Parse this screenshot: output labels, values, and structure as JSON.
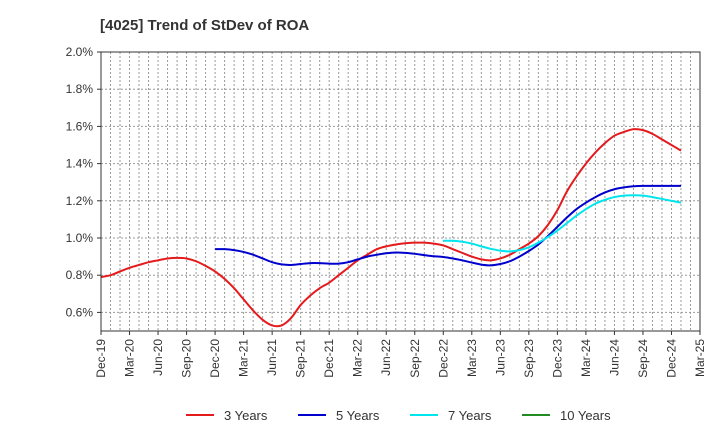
{
  "chart_data": {
    "type": "line",
    "title": "[4025]  Trend of StDev of ROA",
    "xlabel": "",
    "ylabel": "",
    "x_ticks": [
      "Dec-19",
      "Mar-20",
      "Jun-20",
      "Sep-20",
      "Dec-20",
      "Mar-21",
      "Jun-21",
      "Sep-21",
      "Dec-21",
      "Mar-22",
      "Jun-22",
      "Sep-22",
      "Dec-22",
      "Mar-23",
      "Jun-23",
      "Sep-23",
      "Dec-23",
      "Mar-24",
      "Jun-24",
      "Sep-24",
      "Dec-24",
      "Mar-25"
    ],
    "y_ticks": [
      "0.6%",
      "0.8%",
      "1.0%",
      "1.2%",
      "1.4%",
      "1.6%",
      "1.8%",
      "2.0%"
    ],
    "ylim": [
      0.5,
      2.0
    ],
    "y_unit": "%",
    "grid": true,
    "legend_position": "bottom",
    "series": [
      {
        "name": "3 Years",
        "color": "#e41a1c",
        "points": [
          [
            "Dec-19",
            0.79
          ],
          [
            "Jan-20",
            0.8
          ],
          [
            "Feb-20",
            0.82
          ],
          [
            "Mar-20",
            0.84
          ],
          [
            "Apr-20",
            0.855
          ],
          [
            "May-20",
            0.87
          ],
          [
            "Jun-20",
            0.88
          ],
          [
            "Jul-20",
            0.89
          ],
          [
            "Aug-20",
            0.893
          ],
          [
            "Sep-20",
            0.89
          ],
          [
            "Oct-20",
            0.875
          ],
          [
            "Nov-20",
            0.85
          ],
          [
            "Dec-20",
            0.82
          ],
          [
            "Jan-21",
            0.78
          ],
          [
            "Feb-21",
            0.73
          ],
          [
            "Mar-21",
            0.67
          ],
          [
            "Apr-21",
            0.61
          ],
          [
            "May-21",
            0.56
          ],
          [
            "Jun-21",
            0.53
          ],
          [
            "Jul-21",
            0.53
          ],
          [
            "Aug-21",
            0.57
          ],
          [
            "Sep-21",
            0.64
          ],
          [
            "Oct-21",
            0.69
          ],
          [
            "Nov-21",
            0.73
          ],
          [
            "Dec-21",
            0.76
          ],
          [
            "Jan-22",
            0.8
          ],
          [
            "Feb-22",
            0.84
          ],
          [
            "Mar-22",
            0.88
          ],
          [
            "Apr-22",
            0.91
          ],
          [
            "May-22",
            0.94
          ],
          [
            "Jun-22",
            0.955
          ],
          [
            "Jul-22",
            0.965
          ],
          [
            "Aug-22",
            0.972
          ],
          [
            "Sep-22",
            0.975
          ],
          [
            "Oct-22",
            0.975
          ],
          [
            "Nov-22",
            0.97
          ],
          [
            "Dec-22",
            0.96
          ],
          [
            "Jan-23",
            0.94
          ],
          [
            "Feb-23",
            0.92
          ],
          [
            "Mar-23",
            0.9
          ],
          [
            "Apr-23",
            0.885
          ],
          [
            "May-23",
            0.88
          ],
          [
            "Jun-23",
            0.89
          ],
          [
            "Jul-23",
            0.91
          ],
          [
            "Aug-23",
            0.94
          ],
          [
            "Sep-23",
            0.97
          ],
          [
            "Oct-23",
            1.01
          ],
          [
            "Nov-23",
            1.07
          ],
          [
            "Dec-23",
            1.15
          ],
          [
            "Jan-24",
            1.25
          ],
          [
            "Feb-24",
            1.33
          ],
          [
            "Mar-24",
            1.4
          ],
          [
            "Apr-24",
            1.46
          ],
          [
            "May-24",
            1.51
          ],
          [
            "Jun-24",
            1.55
          ],
          [
            "Jul-24",
            1.57
          ],
          [
            "Aug-24",
            1.585
          ],
          [
            "Sep-24",
            1.58
          ],
          [
            "Oct-24",
            1.56
          ],
          [
            "Nov-24",
            1.53
          ],
          [
            "Dec-24",
            1.5
          ],
          [
            "Jan-25",
            1.47
          ]
        ]
      },
      {
        "name": "5 Years",
        "color": "#0000cd",
        "points": [
          [
            "Dec-20",
            0.94
          ],
          [
            "Jan-21",
            0.94
          ],
          [
            "Feb-21",
            0.935
          ],
          [
            "Mar-21",
            0.925
          ],
          [
            "Apr-21",
            0.91
          ],
          [
            "May-21",
            0.89
          ],
          [
            "Jun-21",
            0.87
          ],
          [
            "Jul-21",
            0.858
          ],
          [
            "Aug-21",
            0.855
          ],
          [
            "Sep-21",
            0.86
          ],
          [
            "Oct-21",
            0.865
          ],
          [
            "Nov-21",
            0.865
          ],
          [
            "Dec-21",
            0.862
          ],
          [
            "Jan-22",
            0.862
          ],
          [
            "Feb-22",
            0.87
          ],
          [
            "Mar-22",
            0.885
          ],
          [
            "Apr-22",
            0.9
          ],
          [
            "May-22",
            0.91
          ],
          [
            "Jun-22",
            0.918
          ],
          [
            "Jul-22",
            0.922
          ],
          [
            "Aug-22",
            0.92
          ],
          [
            "Sep-22",
            0.915
          ],
          [
            "Oct-22",
            0.908
          ],
          [
            "Nov-22",
            0.902
          ],
          [
            "Dec-22",
            0.898
          ],
          [
            "Jan-23",
            0.89
          ],
          [
            "Feb-23",
            0.88
          ],
          [
            "Mar-23",
            0.868
          ],
          [
            "Apr-23",
            0.857
          ],
          [
            "May-23",
            0.853
          ],
          [
            "Jun-23",
            0.86
          ],
          [
            "Jul-23",
            0.875
          ],
          [
            "Aug-23",
            0.9
          ],
          [
            "Sep-23",
            0.93
          ],
          [
            "Oct-23",
            0.965
          ],
          [
            "Nov-23",
            1.01
          ],
          [
            "Dec-23",
            1.06
          ],
          [
            "Jan-24",
            1.11
          ],
          [
            "Feb-24",
            1.155
          ],
          [
            "Mar-24",
            1.19
          ],
          [
            "Apr-24",
            1.22
          ],
          [
            "May-24",
            1.245
          ],
          [
            "Jun-24",
            1.262
          ],
          [
            "Jul-24",
            1.272
          ],
          [
            "Aug-24",
            1.278
          ],
          [
            "Sep-24",
            1.28
          ],
          [
            "Oct-24",
            1.28
          ],
          [
            "Nov-24",
            1.28
          ],
          [
            "Dec-24",
            1.28
          ],
          [
            "Jan-25",
            1.28
          ]
        ]
      },
      {
        "name": "7 Years",
        "color": "#00e5ee",
        "points": [
          [
            "Dec-22",
            0.985
          ],
          [
            "Jan-23",
            0.985
          ],
          [
            "Feb-23",
            0.98
          ],
          [
            "Mar-23",
            0.97
          ],
          [
            "Apr-23",
            0.955
          ],
          [
            "May-23",
            0.942
          ],
          [
            "Jun-23",
            0.932
          ],
          [
            "Jul-23",
            0.928
          ],
          [
            "Aug-23",
            0.935
          ],
          [
            "Sep-23",
            0.95
          ],
          [
            "Oct-23",
            0.975
          ],
          [
            "Nov-23",
            1.005
          ],
          [
            "Dec-23",
            1.04
          ],
          [
            "Jan-24",
            1.08
          ],
          [
            "Feb-24",
            1.12
          ],
          [
            "Mar-24",
            1.155
          ],
          [
            "Apr-24",
            1.185
          ],
          [
            "May-24",
            1.205
          ],
          [
            "Jun-24",
            1.22
          ],
          [
            "Jul-24",
            1.228
          ],
          [
            "Aug-24",
            1.23
          ],
          [
            "Sep-24",
            1.228
          ],
          [
            "Oct-24",
            1.22
          ],
          [
            "Nov-24",
            1.21
          ],
          [
            "Dec-24",
            1.2
          ],
          [
            "Jan-25",
            1.19
          ]
        ]
      },
      {
        "name": "10 Years",
        "color": "#228b22",
        "points": []
      }
    ]
  }
}
